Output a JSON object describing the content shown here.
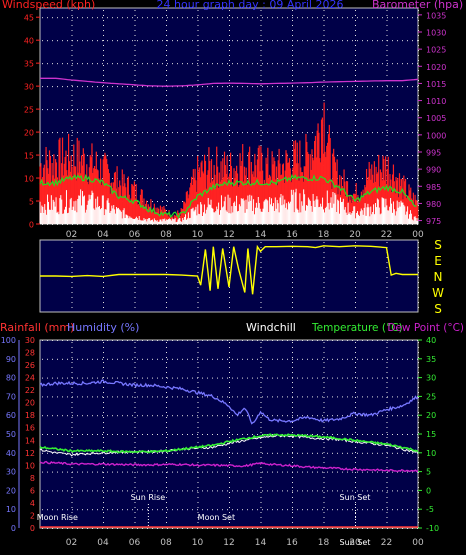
{
  "colors": {
    "background": "#000000",
    "plot_bg": "#000048",
    "frame": "#c0c0c0",
    "grid": "#e0e0e0",
    "windspeed": "#ff2222",
    "wind_avg": "#22dd22",
    "wind_light": "#ffffff",
    "barometer": "#cc33cc",
    "direction": "#ffff00",
    "humidity": "#7777ff",
    "rainfall": "#ff3333",
    "windchill": "#ffffff",
    "temperature": "#33ee33",
    "dewpoint": "#cc22cc",
    "title": "#3333ff",
    "axis_text": "#c0c0c0",
    "annotation": "#ffffff"
  },
  "chart_data": [
    {
      "type": "line",
      "panel": "wind",
      "title": "24 hour graph day : 09 April 2026",
      "left_axis_label": "Windspeed (kph)",
      "right_axis_label": "Barometer (hpa)",
      "y_left_ticks": [
        "0",
        "5",
        "10",
        "15",
        "20",
        "25",
        "30",
        "35",
        "40",
        "45"
      ],
      "ylim_left": [
        0,
        47
      ],
      "y_right_ticks": [
        "975",
        "980",
        "985",
        "990",
        "995",
        "1000",
        "1005",
        "1010",
        "1015",
        "1020",
        "1025",
        "1030",
        "1035"
      ],
      "ylim_right": [
        974,
        1037
      ],
      "x_ticks": [
        "02",
        "04",
        "06",
        "08",
        "10",
        "12",
        "14",
        "16",
        "18",
        "20",
        "22",
        "00"
      ],
      "xlim_hours": [
        0,
        24
      ],
      "series": [
        {
          "key": "gust",
          "x": [
            0,
            1,
            2,
            3,
            4,
            5,
            6,
            7,
            8,
            8.5,
            9,
            10,
            11,
            12,
            13,
            14,
            15,
            16,
            17,
            17.7,
            18,
            18.5,
            19,
            20,
            21,
            22,
            22.5,
            23,
            24
          ],
          "y": [
            14,
            15,
            16,
            15,
            13,
            10,
            8,
            5,
            3,
            2,
            3,
            12,
            14,
            13,
            15,
            14,
            13,
            15,
            16,
            22,
            28,
            14,
            11,
            7,
            12,
            14,
            12,
            9,
            5
          ]
        },
        {
          "key": "average",
          "x": [
            0,
            1,
            2,
            3,
            4,
            5,
            6,
            7,
            8,
            9,
            10,
            11,
            12,
            13,
            14,
            15,
            16,
            17,
            18,
            19,
            20,
            21,
            22,
            23,
            24
          ],
          "y": [
            9,
            9,
            10,
            10,
            9,
            6,
            5,
            3,
            2,
            2,
            6,
            8,
            9,
            9,
            9,
            9,
            10,
            10,
            10,
            8,
            5,
            7,
            8,
            7,
            3
          ]
        },
        {
          "key": "light",
          "x": [
            0,
            1,
            2,
            3,
            4,
            5,
            6,
            7,
            8,
            9,
            10,
            11,
            12,
            13,
            14,
            15,
            16,
            17,
            18,
            19,
            20,
            21,
            22,
            23,
            24
          ],
          "y": [
            5,
            5,
            6,
            6,
            5,
            3,
            2,
            1,
            1,
            1,
            4,
            5,
            5,
            5,
            5,
            5,
            6,
            6,
            6,
            5,
            3,
            4,
            5,
            4,
            1
          ]
        },
        {
          "key": "barometer",
          "x": [
            0,
            1,
            2,
            3,
            4,
            5,
            6,
            7,
            8,
            9,
            10,
            11,
            12,
            13,
            14,
            15,
            16,
            17,
            18,
            19,
            20,
            21,
            22,
            23,
            24
          ],
          "y": [
            1016.5,
            1016.5,
            1016,
            1015.6,
            1015.2,
            1014.9,
            1014.6,
            1014.3,
            1014.2,
            1014.3,
            1014.6,
            1015.0,
            1015.1,
            1015.0,
            1014.9,
            1015.0,
            1015.1,
            1015.2,
            1015.4,
            1015.5,
            1015.6,
            1015.7,
            1015.8,
            1015.8,
            1016.2
          ]
        }
      ]
    },
    {
      "type": "line",
      "panel": "direction",
      "y_labels": [
        "S",
        "E",
        "N",
        "W",
        "S"
      ],
      "ylim": [
        0,
        360
      ],
      "xlim_hours": [
        0,
        24
      ],
      "series": [
        {
          "key": "direction",
          "x": [
            0,
            1,
            2,
            3,
            4,
            5,
            6,
            7,
            8,
            9,
            10,
            10.2,
            10.5,
            10.8,
            11,
            11.3,
            11.6,
            12,
            12.3,
            12.6,
            13,
            13.2,
            13.5,
            13.8,
            14,
            14.3,
            15,
            16,
            17,
            17.5,
            18,
            19,
            20,
            21,
            22,
            22.3,
            22.6,
            23,
            24
          ],
          "y": [
            180,
            180,
            182,
            178,
            182,
            172,
            172,
            172,
            172,
            175,
            180,
            230,
            35,
            260,
            20,
            250,
            30,
            240,
            20,
            140,
            270,
            30,
            280,
            20,
            45,
            20,
            20,
            18,
            20,
            25,
            15,
            20,
            15,
            18,
            25,
            175,
            165,
            172,
            172
          ]
        }
      ]
    },
    {
      "type": "line",
      "panel": "temperature",
      "labels": {
        "rainfall": "Rainfall (mm)",
        "humidity": "Humidity (%)",
        "windchill": "Windchill",
        "temperature": "Temperature (°C)",
        "dewpoint": "Dew Point (°C)"
      },
      "humidity_ticks": [
        "0",
        "10",
        "20",
        "30",
        "40",
        "50",
        "60",
        "70",
        "80",
        "90",
        "100"
      ],
      "ylim_humidity": [
        0,
        100
      ],
      "rain_ticks": [
        "0",
        "2",
        "4",
        "6",
        "8",
        "10",
        "12",
        "14",
        "16",
        "18",
        "20",
        "22",
        "24",
        "26",
        "28",
        "30"
      ],
      "ylim_rain": [
        0,
        30
      ],
      "temp_ticks": [
        "-10",
        "-5",
        "0",
        "5",
        "10",
        "15",
        "20",
        "25",
        "30",
        "35",
        "40"
      ],
      "ylim_temp": [
        -10,
        40
      ],
      "x_ticks": [
        "02",
        "04",
        "06",
        "08",
        "10",
        "12",
        "14",
        "16",
        "18",
        "20",
        "22",
        "00"
      ],
      "xlim_hours": [
        0,
        24
      ],
      "series": [
        {
          "key": "humidity",
          "x": [
            0,
            1,
            2,
            3,
            4,
            5,
            6,
            7,
            8,
            9,
            10,
            11,
            12,
            12.5,
            13,
            13.5,
            14,
            14.5,
            15,
            16,
            17,
            18,
            19,
            20,
            21,
            22,
            23,
            24
          ],
          "y": [
            76,
            77,
            77,
            77,
            78,
            77,
            76,
            76,
            75,
            74,
            72,
            70,
            65,
            60,
            64,
            55,
            62,
            58,
            57,
            57,
            59,
            57,
            58,
            61,
            60,
            63,
            65,
            70
          ]
        },
        {
          "key": "temperature",
          "x": [
            0,
            1,
            2,
            3,
            4,
            5,
            6,
            7,
            8,
            9,
            10,
            11,
            12,
            13,
            14,
            15,
            16,
            17,
            18,
            19,
            20,
            21,
            22,
            23,
            24
          ],
          "y": [
            11.5,
            11.0,
            10.5,
            10.5,
            10.5,
            10.3,
            10.3,
            10.3,
            10.5,
            11,
            11.5,
            12,
            13,
            13.8,
            14.5,
            14.8,
            14.7,
            14.5,
            14.2,
            13.8,
            13.3,
            12.8,
            12.3,
            11.5,
            10.5
          ]
        },
        {
          "key": "windchill",
          "x": [
            0,
            1,
            2,
            3,
            4,
            5,
            6,
            7,
            8,
            9,
            10,
            11,
            12,
            13,
            14,
            15,
            16,
            17,
            18,
            19,
            20,
            21,
            22,
            23,
            24
          ],
          "y": [
            10.8,
            10.0,
            9.5,
            9.8,
            10,
            10.2,
            10.3,
            10.3,
            10.5,
            11,
            11.2,
            11.5,
            12.5,
            13.3,
            14,
            14.5,
            14.5,
            14,
            13.8,
            13.5,
            13,
            12.5,
            12,
            11,
            10
          ]
        },
        {
          "key": "dewpoint",
          "x": [
            0,
            1,
            2,
            3,
            4,
            5,
            6,
            7,
            8,
            9,
            10,
            11,
            12,
            13,
            14,
            15,
            16,
            17,
            18,
            19,
            20,
            21,
            22,
            23,
            24
          ],
          "y": [
            7.5,
            7.3,
            7.0,
            7.0,
            7.0,
            6.9,
            6.8,
            6.8,
            6.9,
            6.9,
            6.7,
            6.7,
            6.6,
            6.5,
            7.2,
            6.8,
            6.6,
            6.2,
            6.0,
            5.8,
            5.6,
            5.5,
            5.3,
            5.3,
            5.3
          ]
        },
        {
          "key": "rainfall",
          "x": [
            0,
            24
          ],
          "y": [
            0,
            0
          ]
        }
      ],
      "annotations": [
        {
          "label": "Sun Rise",
          "hour": 6.85,
          "row": "upper"
        },
        {
          "label": "Sun Set",
          "hour": 20.0,
          "row": "upper"
        },
        {
          "label": "Moon Rise",
          "hour": 1.1,
          "row": "lower"
        },
        {
          "label": "Moon Set",
          "hour": 11.2,
          "row": "lower"
        },
        {
          "label": "Sun Set",
          "hour": 20.0,
          "row": "bottom"
        }
      ]
    }
  ]
}
